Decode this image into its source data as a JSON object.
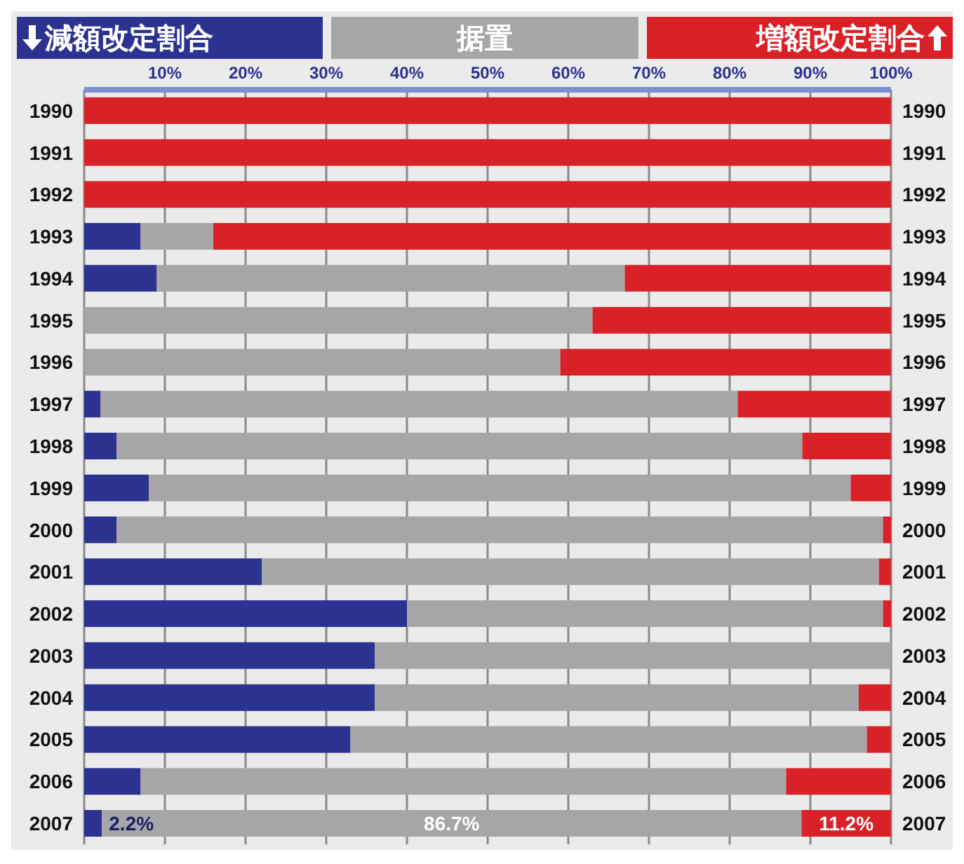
{
  "chart_data": {
    "type": "bar",
    "orientation": "horizontal",
    "stacked": true,
    "categories": [
      "1990",
      "1991",
      "1992",
      "1993",
      "1994",
      "1995",
      "1996",
      "1997",
      "1998",
      "1999",
      "2000",
      "2001",
      "2002",
      "2003",
      "2004",
      "2005",
      "2006",
      "2007"
    ],
    "series": [
      {
        "name": "減額改定割合",
        "color": "#2b3290",
        "values": [
          0,
          0,
          0,
          7,
          9,
          0,
          0,
          2,
          4,
          8,
          4,
          22,
          40,
          36,
          36,
          33,
          7,
          2.2
        ],
        "value_labels": [
          null,
          null,
          null,
          null,
          null,
          null,
          null,
          null,
          null,
          null,
          null,
          null,
          null,
          null,
          null,
          null,
          null,
          "2.2%"
        ]
      },
      {
        "name": "据置",
        "color": "#a6a6a8",
        "values": [
          0,
          0,
          0,
          9,
          58,
          63,
          59,
          79,
          85,
          87,
          95,
          76.5,
          59,
          64,
          60,
          64,
          80,
          86.7
        ],
        "value_labels": [
          null,
          null,
          null,
          null,
          null,
          null,
          null,
          null,
          null,
          null,
          null,
          null,
          null,
          null,
          null,
          null,
          null,
          "86.7%"
        ]
      },
      {
        "name": "増額改定割合",
        "color": "#d92228",
        "values": [
          100,
          100,
          100,
          84,
          33,
          37,
          41,
          19,
          11,
          5,
          1,
          1.5,
          1,
          0,
          4,
          3,
          13,
          11.2
        ],
        "value_labels": [
          null,
          null,
          null,
          null,
          null,
          null,
          null,
          null,
          null,
          null,
          null,
          null,
          null,
          null,
          null,
          null,
          null,
          "11.2%"
        ]
      }
    ],
    "xlim": [
      0,
      100
    ],
    "xticks": [
      {
        "value": 10,
        "label": "10%"
      },
      {
        "value": 20,
        "label": "20%"
      },
      {
        "value": 30,
        "label": "30%"
      },
      {
        "value": 40,
        "label": "40%"
      },
      {
        "value": 50,
        "label": "50%"
      },
      {
        "value": 60,
        "label": "60%"
      },
      {
        "value": 70,
        "label": "70%"
      },
      {
        "value": 80,
        "label": "80%"
      },
      {
        "value": 90,
        "label": "90%"
      },
      {
        "value": 100,
        "label": "100%"
      }
    ],
    "grid": "x",
    "legend": "top"
  }
}
